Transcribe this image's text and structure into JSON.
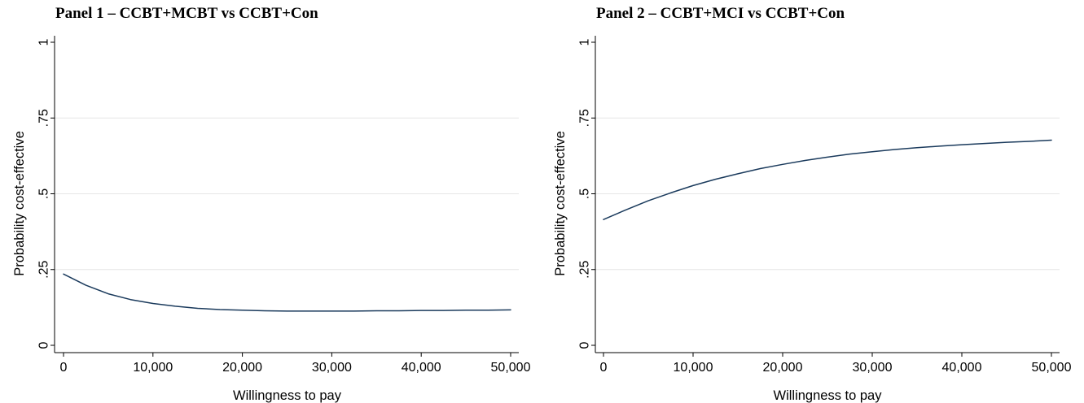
{
  "chart_data": [
    {
      "type": "line",
      "title": "Panel 1 – CCBT+MCBT vs CCBT+Con",
      "xlabel": "Willingness to pay",
      "ylabel": "Probability cost-effective",
      "xlim": [
        0,
        50000
      ],
      "ylim": [
        0,
        1
      ],
      "xticks": [
        0,
        10000,
        20000,
        30000,
        40000,
        50000
      ],
      "xtick_labels": [
        "0",
        "10,000",
        "20,000",
        "30,000",
        "40,000",
        "50,000"
      ],
      "yticks": [
        0,
        0.25,
        0.5,
        0.75,
        1
      ],
      "ytick_labels": [
        "0",
        ".25",
        ".5",
        ".75",
        "1"
      ],
      "grid": true,
      "line_color": "#1a3a5c",
      "x": [
        0,
        2500,
        5000,
        7500,
        10000,
        12500,
        15000,
        17500,
        20000,
        22500,
        25000,
        27500,
        30000,
        32500,
        35000,
        37500,
        40000,
        42500,
        45000,
        47500,
        50000
      ],
      "y": [
        0.235,
        0.198,
        0.17,
        0.151,
        0.138,
        0.129,
        0.122,
        0.118,
        0.116,
        0.114,
        0.113,
        0.113,
        0.113,
        0.113,
        0.114,
        0.114,
        0.115,
        0.115,
        0.116,
        0.116,
        0.117
      ]
    },
    {
      "type": "line",
      "title": "Panel 2 – CCBT+MCI vs CCBT+Con",
      "xlabel": "Willingness to pay",
      "ylabel": "Probability cost-effective",
      "xlim": [
        0,
        50000
      ],
      "ylim": [
        0,
        1
      ],
      "xticks": [
        0,
        10000,
        20000,
        30000,
        40000,
        50000
      ],
      "xtick_labels": [
        "0",
        "10,000",
        "20,000",
        "30,000",
        "40,000",
        "50,000"
      ],
      "yticks": [
        0,
        0.25,
        0.5,
        0.75,
        1
      ],
      "ytick_labels": [
        "0",
        ".25",
        ".5",
        ".75",
        "1"
      ],
      "grid": true,
      "line_color": "#1a3a5c",
      "x": [
        0,
        2500,
        5000,
        7500,
        10000,
        12500,
        15000,
        17500,
        20000,
        22500,
        25000,
        27500,
        30000,
        32500,
        35000,
        37500,
        40000,
        42500,
        45000,
        47500,
        50000
      ],
      "y": [
        0.415,
        0.447,
        0.477,
        0.503,
        0.527,
        0.548,
        0.566,
        0.583,
        0.597,
        0.61,
        0.621,
        0.631,
        0.639,
        0.646,
        0.652,
        0.657,
        0.662,
        0.666,
        0.67,
        0.673,
        0.677
      ]
    }
  ]
}
